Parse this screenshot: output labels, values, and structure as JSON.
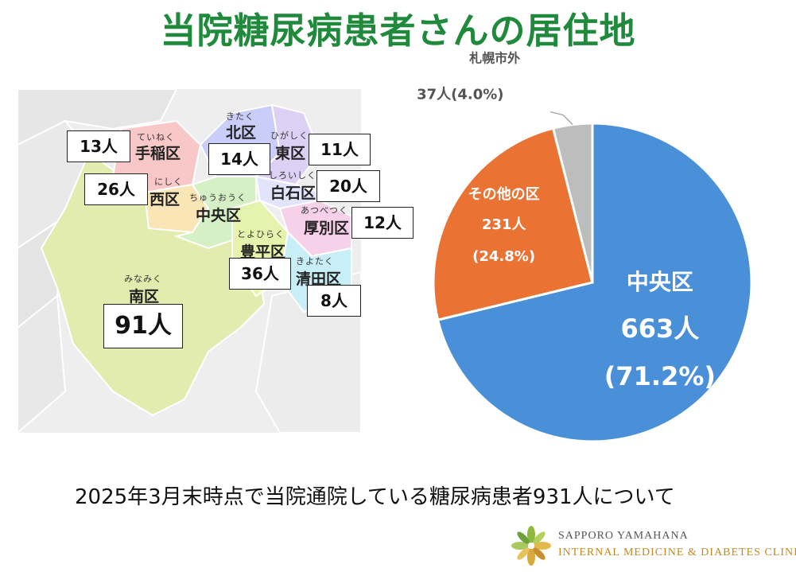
{
  "title": "当院糖尿病患者さんの居住地",
  "map": {
    "wards": [
      {
        "name": "手稲区",
        "kana": "ていねく",
        "count": "13人"
      },
      {
        "name": "北区",
        "kana": "きたく",
        "count": "14人"
      },
      {
        "name": "東区",
        "kana": "ひがしく",
        "count": "11人"
      },
      {
        "name": "西区",
        "kana": "にしく",
        "count": "26人"
      },
      {
        "name": "白石区",
        "kana": "しろいしく",
        "count": "20人"
      },
      {
        "name": "中央区",
        "kana": "ちゅうおうく",
        "count": ""
      },
      {
        "name": "厚別区",
        "kana": "あつべつく",
        "count": "12人"
      },
      {
        "name": "豊平区",
        "kana": "とよひらく",
        "count": "36人"
      },
      {
        "name": "清田区",
        "kana": "きよたく",
        "count": "8人"
      },
      {
        "name": "南区",
        "kana": "みなみく",
        "count": "91人"
      }
    ]
  },
  "chart_data": {
    "type": "pie",
    "slices": [
      {
        "label": "中央区",
        "value": 663,
        "count_label": "663人",
        "pct_label": "(71.2%)",
        "color": "#4a90d9"
      },
      {
        "label": "その他の区",
        "value": 231,
        "count_label": "231人",
        "pct_label": "(24.8%)",
        "color": "#ea7334"
      },
      {
        "label": "札幌市外",
        "value": 37,
        "count_label": "37人(4.0%)",
        "pct_label": "",
        "color": "#bdbdbd"
      }
    ]
  },
  "footnote": "2025年3月末時点で当院通院している糖尿病患者931人について",
  "logo": {
    "line1": "SAPPORO YAMAHANA",
    "line2": "INTERNAL MEDICINE & DIABETES CLINIC"
  },
  "colors": {
    "title": "#1f8a3b",
    "minami": "#e2ecae",
    "teine": "#f8c8c8",
    "kita": "#c9cdf7",
    "higashi": "#ddd0f5",
    "nishi": "#f9e5b5",
    "chuo": "#d4f0c4",
    "shiroishi": "#e2e4fb",
    "atsubetsu": "#f7d0ea",
    "toyohira": "#e6f3ad",
    "kiyota": "#c8eef7"
  }
}
